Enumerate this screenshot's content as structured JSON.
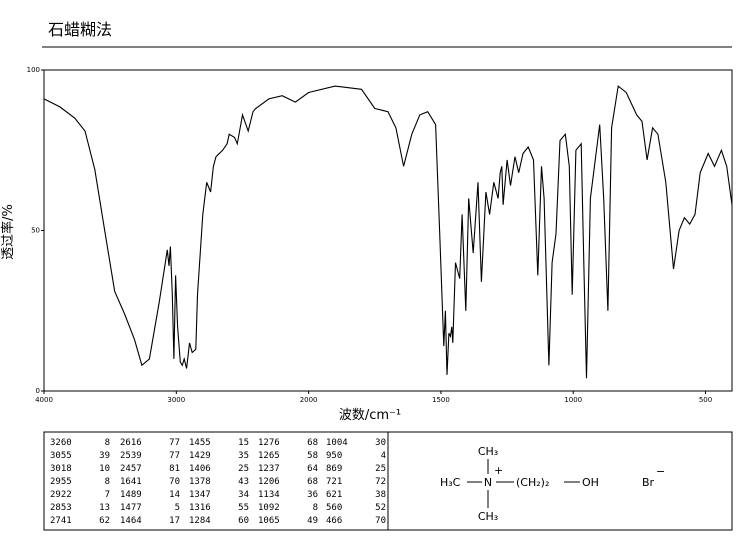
{
  "header": {
    "title": "石蜡糊法"
  },
  "chart_data": {
    "type": "line",
    "xlabel": "波数/cm⁻¹",
    "ylabel": "透过率/%",
    "color": "#000000",
    "xlim": [
      4000,
      400
    ],
    "x_scale_break": 2000,
    "x_scale_ratio": 2,
    "xticks": [
      4000,
      3000,
      2000,
      1500,
      1000,
      500
    ],
    "ylim": [
      0,
      100
    ],
    "yticks": [
      0,
      50,
      100
    ],
    "x": [
      4000,
      3880,
      3767,
      3690,
      3616,
      3541,
      3466,
      3391,
      3316,
      3260,
      3203,
      3128,
      3068,
      3055,
      3045,
      3030,
      3018,
      3005,
      2990,
      2970,
      2955,
      2940,
      2922,
      2900,
      2880,
      2853,
      2840,
      2800,
      2770,
      2741,
      2720,
      2700,
      2650,
      2616,
      2600,
      2560,
      2539,
      2500,
      2457,
      2420,
      2400,
      2300,
      2200,
      2100,
      2000,
      1900,
      1800,
      1750,
      1700,
      1670,
      1641,
      1610,
      1580,
      1550,
      1520,
      1505,
      1489,
      1483,
      1477,
      1470,
      1464,
      1459,
      1455,
      1445,
      1429,
      1420,
      1406,
      1395,
      1378,
      1360,
      1347,
      1330,
      1316,
      1300,
      1284,
      1276,
      1270,
      1265,
      1250,
      1237,
      1220,
      1206,
      1190,
      1170,
      1150,
      1134,
      1120,
      1110,
      1092,
      1080,
      1065,
      1050,
      1030,
      1015,
      1004,
      990,
      970,
      960,
      950,
      935,
      900,
      885,
      869,
      855,
      830,
      800,
      760,
      740,
      721,
      700,
      680,
      650,
      621,
      600,
      580,
      560,
      540,
      520,
      490,
      466,
      440,
      420,
      400
    ],
    "values": [
      91,
      88.5,
      85,
      81,
      69,
      50,
      31,
      24,
      16,
      8,
      10,
      28,
      44,
      39,
      45,
      30,
      10,
      36,
      20,
      9,
      8,
      10,
      7,
      15,
      12,
      13,
      30,
      55,
      65,
      62,
      70,
      73,
      75,
      77,
      80,
      79,
      77,
      86,
      81,
      87,
      88,
      91,
      92,
      90,
      93,
      95,
      94,
      88,
      87,
      82,
      70,
      80,
      86,
      87,
      83,
      50,
      14,
      25,
      5,
      18,
      17,
      20,
      15,
      40,
      35,
      55,
      25,
      60,
      43,
      65,
      34,
      62,
      55,
      65,
      60,
      68,
      70,
      58,
      72,
      64,
      73,
      68,
      74,
      76,
      72,
      36,
      70,
      60,
      8,
      40,
      49,
      78,
      80,
      70,
      30,
      75,
      77,
      40,
      4,
      60,
      83,
      60,
      25,
      82,
      95,
      93,
      86,
      84,
      72,
      82,
      80,
      65,
      38,
      50,
      54,
      52,
      55,
      68,
      74,
      70,
      75,
      70,
      58
    ]
  },
  "peak_table": [
    [
      [
        "3260",
        "8"
      ],
      [
        "3055",
        "39"
      ],
      [
        "3018",
        "10"
      ],
      [
        "2955",
        "8"
      ],
      [
        "2922",
        "7"
      ],
      [
        "2853",
        "13"
      ],
      [
        "2741",
        "62"
      ]
    ],
    [
      [
        "2616",
        "77"
      ],
      [
        "2539",
        "77"
      ],
      [
        "2457",
        "81"
      ],
      [
        "1641",
        "70"
      ],
      [
        "1489",
        "14"
      ],
      [
        "1477",
        "5"
      ],
      [
        "1464",
        "17"
      ]
    ],
    [
      [
        "1455",
        "15"
      ],
      [
        "1429",
        "35"
      ],
      [
        "1406",
        "25"
      ],
      [
        "1378",
        "43"
      ],
      [
        "1347",
        "34"
      ],
      [
        "1316",
        "55"
      ],
      [
        "1284",
        "60"
      ]
    ],
    [
      [
        "1276",
        "68"
      ],
      [
        "1265",
        "58"
      ],
      [
        "1237",
        "64"
      ],
      [
        "1206",
        "68"
      ],
      [
        "1134",
        "36"
      ],
      [
        "1092",
        "8"
      ],
      [
        "1065",
        "49"
      ]
    ],
    [
      [
        "1004",
        "30"
      ],
      [
        "950",
        "4"
      ],
      [
        "869",
        "25"
      ],
      [
        "721",
        "72"
      ],
      [
        "621",
        "38"
      ],
      [
        "560",
        "52"
      ],
      [
        "466",
        "70"
      ]
    ]
  ],
  "structure": {
    "top": "CH₃",
    "left": "H₃C",
    "center": "N",
    "charge": "+",
    "chain": "(CH₂)₂",
    "end": "OH",
    "bottom": "CH₃",
    "anion": "Br",
    "anion_charge": "−"
  }
}
